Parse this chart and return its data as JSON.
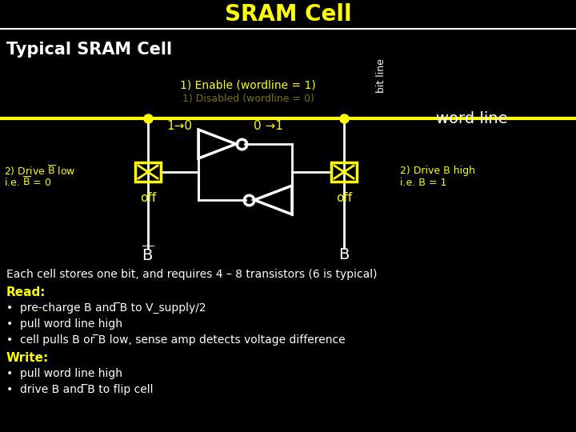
{
  "title": "SRAM Cell",
  "title_color": "#FFFF00",
  "bg_color": "#000000",
  "fg_color": "#FFFFFF",
  "yellow_color": "#FFFF00",
  "typical_label": "Typical SRAM Cell",
  "enable_label": "1) Enable (wordline = 1)",
  "disabled_label": "1) Disabled (wordline = 0)",
  "word_line_label": "word line",
  "bit_line_label": "bit line",
  "one_to_zero": "1→0",
  "zero_to_one": "0 →1",
  "off_left": "off",
  "off_right": "off",
  "drive_b_bar_low_1": "2) Drive ̅B low",
  "drive_b_bar_low_2": "i.e. ̅B = 0",
  "drive_b_high_1": "2) Drive B high",
  "drive_b_high_2": "i.e. B = 1",
  "b_bar": "̅B",
  "b_label": "B",
  "each_cell": "Each cell stores one bit, and requires 4 – 8 transistors (6 is typical)",
  "read_label": "Read:",
  "write_label": "Write:",
  "bullet_read": [
    "pre-charge B and ̅B to V_supply/2",
    "pull word line high",
    "cell pulls B or ̅B low, sense amp detects voltage difference"
  ],
  "bullet_write": [
    "pull word line high",
    "drive B and ̅B to flip cell"
  ]
}
